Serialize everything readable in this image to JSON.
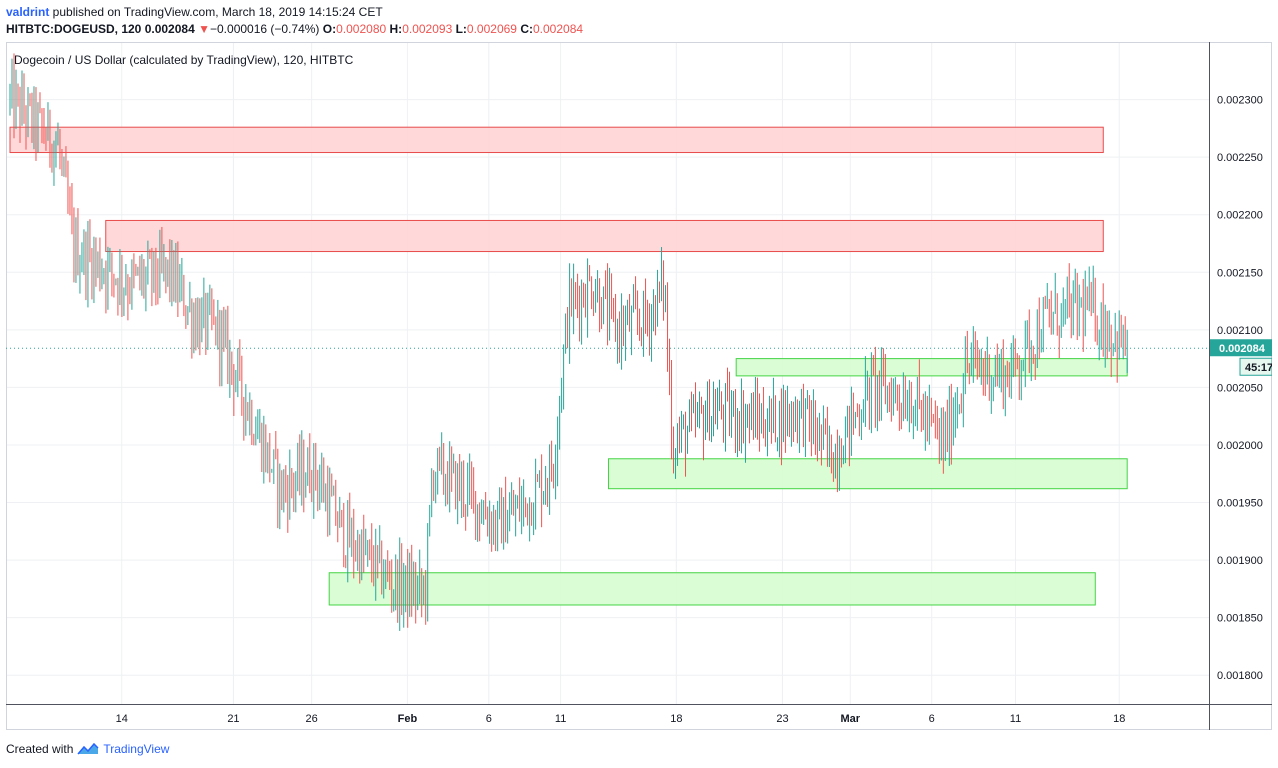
{
  "header": {
    "line1": {
      "author": "valdrint",
      "rest": " published on TradingView.com, March 18, 2019 14:15:24 CET"
    },
    "line2": {
      "symbol": "HITBTC:DOGEUSD, 120",
      "price": "0.002084",
      "change_arrow": "▼",
      "change": "−0.000016 (−0.74%)",
      "o_label": "O:",
      "o": "0.002080",
      "h_label": "H:",
      "h": "0.002093",
      "l_label": "L:",
      "l": "0.002069",
      "c_label": "C:",
      "c": "0.002084"
    }
  },
  "chart_title": "Dogecoin / US Dollar (calculated by TradingView), 120, HITBTC",
  "price_label": "0.002084",
  "countdown": "45:17",
  "footer": {
    "created_with": "Created with",
    "brand": "TradingView"
  },
  "colors": {
    "up": "#26a69a",
    "down": "#ef5350",
    "resistance_fill": "#ffd5d5",
    "resistance_stroke": "#e84a4a",
    "support_fill": "#d6fdd0",
    "support_stroke": "#44d444",
    "price_tag": "#26a69a",
    "grid": "#eef0f3"
  },
  "chart_data": {
    "type": "candlestick",
    "title": "Dogecoin / US Dollar (calculated by TradingView), 120, HITBTC",
    "x_ticks": [
      "14",
      "21",
      "26",
      "Feb",
      "6",
      "11",
      "18",
      "23",
      "Mar",
      "6",
      "11",
      "18"
    ],
    "y_ticks": [
      "0.002300",
      "0.002250",
      "0.002200",
      "0.002150",
      "0.002100",
      "0.002050",
      "0.002000",
      "0.001950",
      "0.001900",
      "0.001850",
      "0.001800"
    ],
    "ylim": [
      0.001775,
      0.00235
    ],
    "last_price": 0.002084,
    "trend_path": [
      [
        0,
        0.0023
      ],
      [
        6,
        0.00226
      ],
      [
        8,
        0.00217
      ],
      [
        15,
        0.00214
      ],
      [
        20,
        0.00215
      ],
      [
        23,
        0.00211
      ],
      [
        26,
        0.0021
      ],
      [
        30,
        0.00203
      ],
      [
        34,
        0.00196
      ],
      [
        38,
        0.00198
      ],
      [
        42,
        0.00192
      ],
      [
        45,
        0.0019
      ],
      [
        48,
        0.00188
      ],
      [
        52,
        0.00187
      ],
      [
        53,
        0.00198
      ],
      [
        57,
        0.00196
      ],
      [
        61,
        0.00193
      ],
      [
        65,
        0.00195
      ],
      [
        68,
        0.00198
      ],
      [
        70,
        0.00212
      ],
      [
        73,
        0.00214
      ],
      [
        76,
        0.0021
      ],
      [
        80,
        0.00211
      ],
      [
        82,
        0.00214
      ],
      [
        83,
        0.002
      ],
      [
        88,
        0.00203
      ],
      [
        95,
        0.00202
      ],
      [
        99,
        0.00203
      ],
      [
        103,
        0.00199
      ],
      [
        108,
        0.00205
      ],
      [
        113,
        0.00204
      ],
      [
        117,
        0.002
      ],
      [
        120,
        0.00207
      ],
      [
        125,
        0.00206
      ],
      [
        130,
        0.00211
      ],
      [
        135,
        0.00212
      ],
      [
        139,
        0.00209
      ],
      [
        140,
        0.002084
      ]
    ],
    "zones": [
      {
        "kind": "resistance",
        "low": 0.002254,
        "high": 0.002276,
        "x_start": 0,
        "x_end": 137
      },
      {
        "kind": "resistance",
        "low": 0.002168,
        "high": 0.002195,
        "x_start": 12,
        "x_end": 137
      },
      {
        "kind": "support",
        "low": 0.00206,
        "high": 0.002075,
        "x_start": 91,
        "x_end": 140
      },
      {
        "kind": "support",
        "low": 0.001962,
        "high": 0.001988,
        "x_start": 75,
        "x_end": 140
      },
      {
        "kind": "support",
        "low": 0.001861,
        "high": 0.001889,
        "x_start": 40,
        "x_end": 136
      }
    ]
  }
}
